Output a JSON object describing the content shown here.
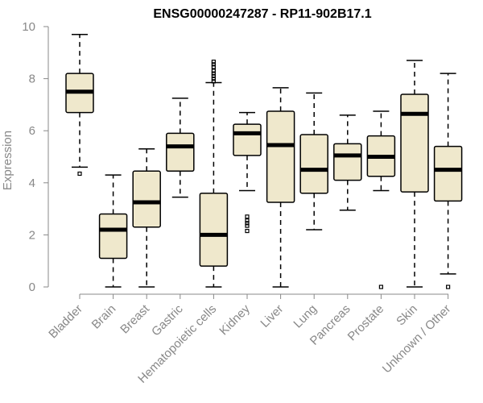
{
  "chart_data": {
    "type": "boxplot",
    "title": "ENSG00000247287 - RP11-902B17.1",
    "xlabel": "",
    "ylabel": "Expression",
    "ylim": [
      0,
      10
    ],
    "yticks": [
      0,
      2,
      4,
      6,
      8,
      10
    ],
    "grid": false,
    "colors": {
      "box_fill": "#efe8cc",
      "box_stroke": "#000000",
      "axis": "#888888",
      "title": "#000000"
    },
    "categories": [
      "Bladder",
      "Brain",
      "Breast",
      "Gastric",
      "Hematopoietic cells",
      "Kidney",
      "Liver",
      "Lung",
      "Pancreas",
      "Prostate",
      "Skin",
      "Unknown / Other"
    ],
    "boxes": [
      {
        "name": "Bladder",
        "min": 4.6,
        "q1": 6.7,
        "median": 7.5,
        "q3": 8.2,
        "max": 9.7,
        "outliers": [
          4.35
        ]
      },
      {
        "name": "Brain",
        "min": 0.0,
        "q1": 1.1,
        "median": 2.2,
        "q3": 2.8,
        "max": 4.3,
        "outliers": []
      },
      {
        "name": "Breast",
        "min": 0.0,
        "q1": 2.3,
        "median": 3.25,
        "q3": 4.45,
        "max": 5.3,
        "outliers": []
      },
      {
        "name": "Gastric",
        "min": 3.45,
        "q1": 4.45,
        "median": 5.4,
        "q3": 5.9,
        "max": 7.25,
        "outliers": []
      },
      {
        "name": "Hematopoietic cells",
        "min": 0.0,
        "q1": 0.8,
        "median": 2.0,
        "q3": 3.6,
        "max": 7.85,
        "outliers": [
          7.9,
          8.0,
          8.1,
          8.2,
          8.3,
          8.45,
          8.55,
          8.65
        ]
      },
      {
        "name": "Kidney",
        "min": 3.7,
        "q1": 5.05,
        "median": 5.9,
        "q3": 6.25,
        "max": 6.7,
        "outliers": [
          2.15,
          2.35,
          2.45,
          2.55,
          2.7
        ]
      },
      {
        "name": "Liver",
        "min": 0.0,
        "q1": 3.25,
        "median": 5.45,
        "q3": 6.75,
        "max": 7.65,
        "outliers": []
      },
      {
        "name": "Lung",
        "min": 2.2,
        "q1": 3.6,
        "median": 4.5,
        "q3": 5.85,
        "max": 7.45,
        "outliers": []
      },
      {
        "name": "Pancreas",
        "min": 2.95,
        "q1": 4.1,
        "median": 5.05,
        "q3": 5.5,
        "max": 6.6,
        "outliers": []
      },
      {
        "name": "Prostate",
        "min": 3.7,
        "q1": 4.25,
        "median": 5.0,
        "q3": 5.8,
        "max": 6.75,
        "outliers": [
          0.0
        ]
      },
      {
        "name": "Skin",
        "min": 0.0,
        "q1": 3.65,
        "median": 6.65,
        "q3": 7.4,
        "max": 8.7,
        "outliers": []
      },
      {
        "name": "Unknown / Other",
        "min": 0.5,
        "q1": 3.3,
        "median": 4.5,
        "q3": 5.4,
        "max": 8.2,
        "outliers": [
          0.0
        ]
      }
    ]
  }
}
